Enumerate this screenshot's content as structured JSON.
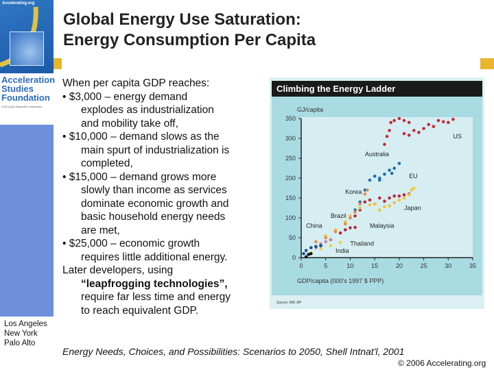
{
  "sidebar": {
    "site": "Accelerating.org",
    "org_name": [
      "Acceleration",
      "Studies",
      "Foundation"
    ],
    "org_tagline": "A 501(c)(3) Nonprofit Corporation",
    "cities": [
      "Los Angeles",
      "New York",
      "Palo Alto"
    ]
  },
  "title": [
    "Global Energy Use Saturation:",
    "Energy Consumption Per Capita"
  ],
  "body": {
    "intro": "When per capita GDP reaches:",
    "bullets": [
      {
        "head": "• $3,000 – energy demand",
        "rest": [
          "explodes as industrialization",
          "and mobility take off,"
        ]
      },
      {
        "head": "• $10,000 – demand slows as the",
        "rest": [
          "main spurt of industrialization is",
          "completed,"
        ]
      },
      {
        "head": "• $15,000 – demand grows more",
        "rest": [
          "slowly than income as services",
          "dominate economic growth and",
          "basic household energy needs",
          "are met,"
        ]
      },
      {
        "head": "• $25,000 – economic growth",
        "rest": [
          "requires little additional energy."
        ]
      }
    ],
    "later": "Later developers, using",
    "leap": "“leapfrogging technologies”,",
    "later_rest": [
      "require far less time and energy",
      "to reach equivalent GDP."
    ]
  },
  "citation": "Energy Needs, Choices, and Possibilities: Scenarios to 2050, Shell Intnat'l, 2001",
  "copyright": "© 2006 Accelerating.org",
  "colors": {
    "sidebar": "#2a6fb8",
    "stripe": "#6e8fd9",
    "gold": "#e7b62c",
    "chart_bg": "#a9dbe2",
    "plot_bg": "#dceff2"
  },
  "chart_data": {
    "type": "scatter",
    "title": "Climbing the Energy Ladder",
    "ylabel": "GJ/capita",
    "xlabel": "GDP/capita (000's 1997 $ PPP)",
    "source": "Source: IMF, BP",
    "xlim": [
      0,
      35
    ],
    "ylim": [
      0,
      350
    ],
    "xticks": [
      "0",
      "5",
      "10",
      "15",
      "20",
      "25",
      "30",
      "35"
    ],
    "yticks": [
      "0",
      "50",
      "100",
      "150",
      "200",
      "250",
      "300",
      "350"
    ],
    "grid": false,
    "series": [
      {
        "name": "US",
        "color": "#c8283a",
        "points": [
          [
            17,
            285
          ],
          [
            17.5,
            305
          ],
          [
            18,
            320
          ],
          [
            18.3,
            340
          ],
          [
            19,
            345
          ],
          [
            20,
            350
          ],
          [
            21,
            345
          ],
          [
            22,
            340
          ],
          [
            21,
            312
          ],
          [
            22,
            308
          ],
          [
            23,
            320
          ],
          [
            24,
            315
          ],
          [
            25,
            325
          ],
          [
            26,
            335
          ],
          [
            27,
            330
          ],
          [
            28,
            345
          ],
          [
            29,
            342
          ],
          [
            30,
            340
          ],
          [
            31,
            348
          ]
        ]
      },
      {
        "name": "Australia",
        "color": "#1e6fb0",
        "points": [
          [
            11,
            120
          ],
          [
            12,
            140
          ],
          [
            13,
            170
          ],
          [
            14,
            195
          ],
          [
            15,
            205
          ],
          [
            16,
            200
          ],
          [
            16,
            195
          ],
          [
            17,
            210
          ],
          [
            18,
            220
          ],
          [
            18.5,
            212
          ],
          [
            19,
            225
          ],
          [
            20,
            237
          ]
        ]
      },
      {
        "name": "EU",
        "color": "#b82a3a",
        "points": [
          [
            11,
            105
          ],
          [
            12,
            120
          ],
          [
            13,
            140
          ],
          [
            14,
            145
          ],
          [
            15,
            135
          ],
          [
            16,
            150
          ],
          [
            17,
            142
          ],
          [
            18,
            150
          ],
          [
            19,
            155
          ],
          [
            20,
            155
          ],
          [
            21,
            158
          ],
          [
            22,
            160
          ]
        ]
      },
      {
        "name": "Japan",
        "color": "#f2c53a",
        "points": [
          [
            5,
            55
          ],
          [
            7,
            70
          ],
          [
            9,
            90
          ],
          [
            10,
            105
          ],
          [
            12,
            125
          ],
          [
            14,
            133
          ],
          [
            15,
            135
          ],
          [
            16,
            120
          ],
          [
            17,
            128
          ],
          [
            18,
            130
          ],
          [
            19,
            138
          ],
          [
            20,
            145
          ],
          [
            21,
            150
          ],
          [
            22,
            158
          ],
          [
            22.5,
            170
          ],
          [
            23,
            175
          ]
        ]
      },
      {
        "name": "Korea",
        "color": "#e58a4a",
        "points": [
          [
            3,
            40
          ],
          [
            5,
            50
          ],
          [
            7,
            65
          ],
          [
            9,
            85
          ],
          [
            10,
            100
          ],
          [
            11,
            115
          ],
          [
            12,
            135
          ],
          [
            13,
            160
          ],
          [
            13.5,
            170
          ]
        ]
      },
      {
        "name": "Malaysia",
        "color": "#b02a3a",
        "points": [
          [
            4,
            30
          ],
          [
            6,
            45
          ],
          [
            8,
            62
          ],
          [
            9,
            70
          ],
          [
            10,
            75
          ],
          [
            11,
            76
          ]
        ]
      },
      {
        "name": "Brazil",
        "color": "#c586a0",
        "points": [
          [
            3,
            25
          ],
          [
            4,
            35
          ],
          [
            5,
            40
          ],
          [
            6,
            45
          ]
        ]
      },
      {
        "name": "China",
        "color": "#1e4f8f",
        "points": [
          [
            0.5,
            10
          ],
          [
            1,
            18
          ],
          [
            2,
            25
          ],
          [
            3,
            28
          ],
          [
            4,
            30
          ]
        ]
      },
      {
        "name": "Thailand",
        "color": "#f0d040",
        "points": [
          [
            2,
            12
          ],
          [
            4,
            22
          ],
          [
            6,
            30
          ],
          [
            8,
            38
          ]
        ]
      },
      {
        "name": "India",
        "color": "#111111",
        "points": [
          [
            1,
            2
          ],
          [
            1.5,
            8
          ],
          [
            2,
            10
          ]
        ]
      }
    ]
  }
}
